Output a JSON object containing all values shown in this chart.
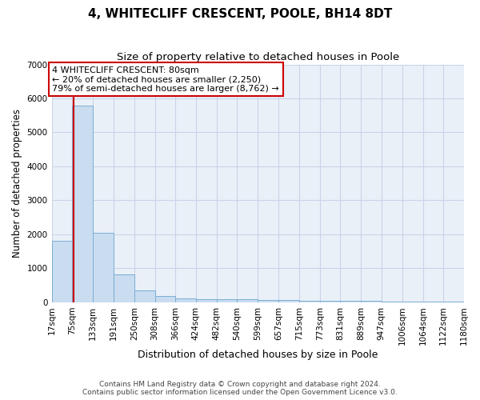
{
  "title": "4, WHITECLIFF CRESCENT, POOLE, BH14 8DT",
  "subtitle": "Size of property relative to detached houses in Poole",
  "xlabel": "Distribution of detached houses by size in Poole",
  "ylabel": "Number of detached properties",
  "bin_edges": [
    17,
    75,
    133,
    191,
    250,
    308,
    366,
    424,
    482,
    540,
    599,
    657,
    715,
    773,
    831,
    889,
    947,
    1006,
    1064,
    1122,
    1180
  ],
  "bar_heights": [
    1800,
    5800,
    2050,
    820,
    340,
    180,
    120,
    100,
    80,
    80,
    60,
    55,
    50,
    45,
    40,
    35,
    30,
    25,
    20,
    15
  ],
  "bar_color": "#c9dcf0",
  "bar_edge_color": "#7aaed4",
  "property_size": 80,
  "annotation_text": "4 WHITECLIFF CRESCENT: 80sqm\n← 20% of detached houses are smaller (2,250)\n79% of semi-detached houses are larger (8,762) →",
  "annotation_box_color": "#ffffff",
  "annotation_edge_color": "#cc0000",
  "vline_color": "#cc0000",
  "ylim": [
    0,
    7000
  ],
  "footer_line1": "Contains HM Land Registry data © Crown copyright and database right 2024.",
  "footer_line2": "Contains public sector information licensed under the Open Government Licence v3.0.",
  "bg_color": "#ffffff",
  "plot_bg_color": "#eaf0f8",
  "grid_color": "#c8d4e8",
  "tick_label_fontsize": 7.5,
  "title_fontsize": 11,
  "subtitle_fontsize": 9.5,
  "ylabel_fontsize": 8.5,
  "xlabel_fontsize": 9
}
